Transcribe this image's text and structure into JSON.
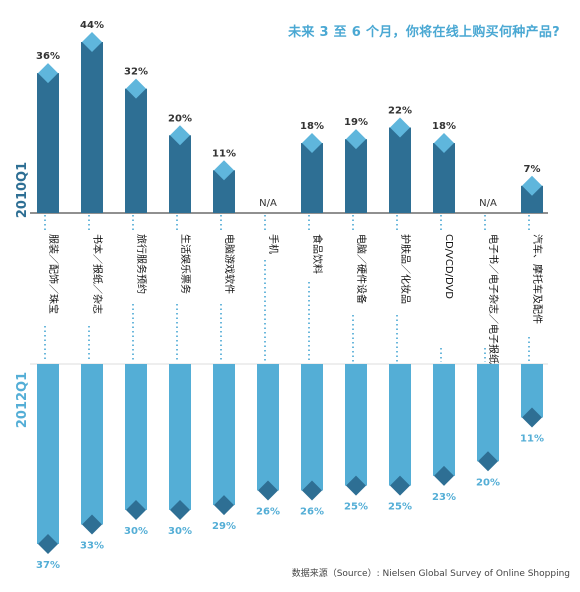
{
  "title": "未来 3 至 6 个月，你将在线上购买何种产品?",
  "source": "数据来源（Source）: Nielsen Global Survey of Online Shopping",
  "colors": {
    "top_series": "#2e6f94",
    "top_marker": "#5fb6dc",
    "bottom_series": "#54aed6",
    "bottom_marker": "#2e6f94",
    "dots": "#3aa0d0"
  },
  "chart_data": {
    "type": "bar",
    "categories": [
      "服装／配饰／珠宝",
      "书本／报纸／杂志",
      "旅行服务预约",
      "生活娱乐票务",
      "电脑游戏软件",
      "手机",
      "食品饮料",
      "电脑／硬件设备",
      "护肤品／化妆品",
      "CD/VCD/DVD",
      "电子书／电子杂志／电子报纸",
      "汽车、摩托车及配件"
    ],
    "series": [
      {
        "name": "2010Q1",
        "values": [
          36,
          44,
          32,
          20,
          11,
          null,
          18,
          19,
          22,
          18,
          null,
          7
        ],
        "labels": [
          "36%",
          "44%",
          "32%",
          "20%",
          "11%",
          "N/A",
          "18%",
          "19%",
          "22%",
          "18%",
          "N/A",
          "7%"
        ]
      },
      {
        "name": "2012Q1",
        "values": [
          37,
          33,
          30,
          30,
          29,
          26,
          26,
          25,
          25,
          23,
          20,
          11
        ],
        "labels": [
          "37%",
          "33%",
          "30%",
          "30%",
          "29%",
          "26%",
          "26%",
          "25%",
          "25%",
          "23%",
          "20%",
          "11%"
        ]
      }
    ],
    "ylim": [
      0,
      44
    ]
  }
}
